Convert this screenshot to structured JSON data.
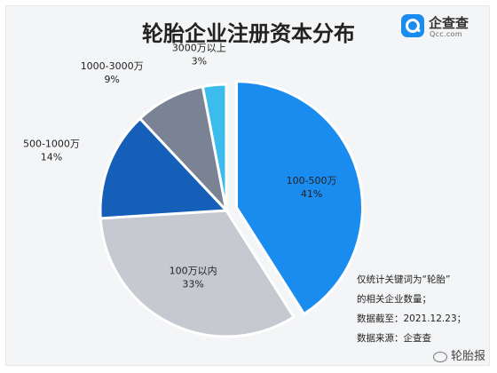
{
  "title": "轮胎企业注册资本分布",
  "logo": {
    "name": "企查查",
    "url": "Qcc.com"
  },
  "colors": {
    "s1": "#1a8cf0",
    "s2": "#c6c9cf",
    "s3": "#155fb8",
    "s4": "#7a8394",
    "s5": "#3cbcec"
  },
  "chart_data": {
    "type": "pie",
    "title": "轮胎企业注册资本分布",
    "slices": [
      {
        "label": "100-500万",
        "pct_label": "41%",
        "value": 41
      },
      {
        "label": "100万以内",
        "pct_label": "33%",
        "value": 33
      },
      {
        "label": "500-1000万",
        "pct_label": "14%",
        "value": 14
      },
      {
        "label": "1000-3000万",
        "pct_label": "9%",
        "value": 9
      },
      {
        "label": "3000万以上",
        "pct_label": "3%",
        "value": 3
      }
    ],
    "exploded_slice": "100-500万"
  },
  "notes": {
    "line1": "仅统计关键词为“轮胎”",
    "line2": "的相关企业数量；",
    "line3": "数据截至：2021.12.23；",
    "line4": "数据来源：企查查"
  },
  "watermark": "轮胎报"
}
